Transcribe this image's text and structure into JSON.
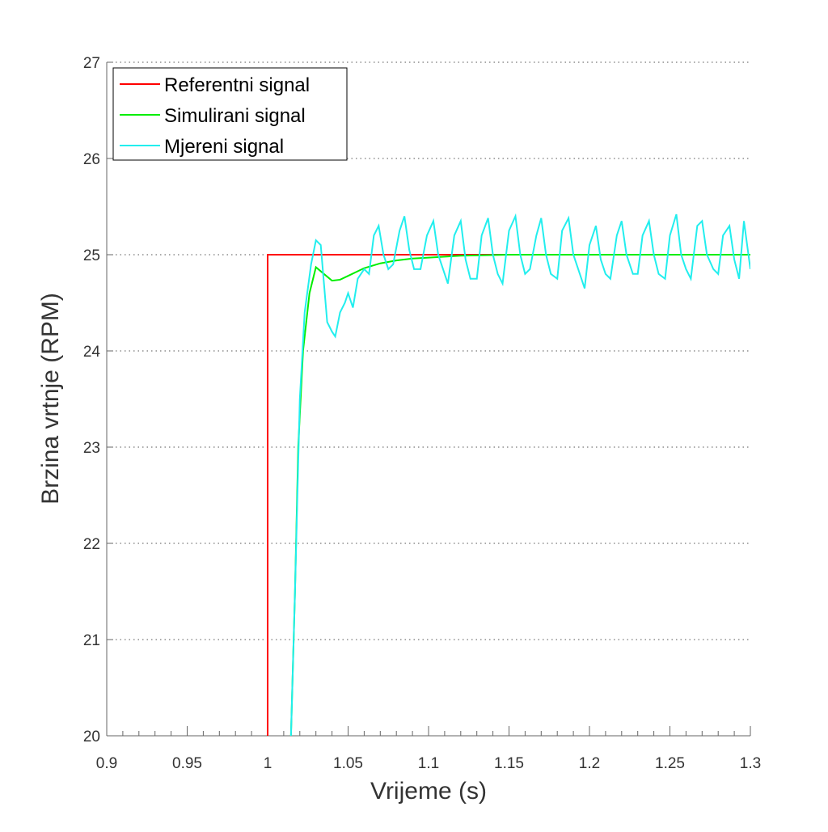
{
  "chart_data": {
    "type": "line",
    "xlabel": "Vrijeme (s)",
    "ylabel": "Brzina vrtnje (RPM)",
    "xlim": [
      0.9,
      1.3
    ],
    "xticks": [
      0.9,
      0.95,
      1,
      1.05,
      1.1,
      1.15,
      1.2,
      1.25,
      1.3
    ],
    "ylim": [
      20,
      27
    ],
    "yticks": [
      20,
      21,
      22,
      23,
      24,
      25,
      26,
      27
    ],
    "grid": true,
    "legend": "upper left",
    "series": [
      {
        "name": "Referentni signal",
        "color": "#ff0000",
        "x": [
          1,
          1,
          1.3
        ],
        "values": [
          20,
          25,
          25
        ]
      },
      {
        "name": "Simulirani signal",
        "color": "#00ee00",
        "x": [
          1.0145,
          1.017,
          1.019,
          1.022,
          1.026,
          1.03,
          1.035,
          1.04,
          1.045,
          1.05,
          1.06,
          1.07,
          1.08,
          1.09,
          1.1,
          1.12,
          1.15,
          1.2,
          1.3
        ],
        "values": [
          20,
          21.5,
          23,
          24,
          24.6,
          24.87,
          24.8,
          24.73,
          24.74,
          24.78,
          24.86,
          24.91,
          24.94,
          24.96,
          24.97,
          24.99,
          25,
          25,
          25
        ]
      },
      {
        "name": "Mjereni signal",
        "color": "#22eeee",
        "x": [
          1.0145,
          1.017,
          1.02,
          1.023,
          1.027,
          1.03,
          1.033,
          1.035,
          1.037,
          1.04,
          1.042,
          1.045,
          1.048,
          1.05,
          1.053,
          1.056,
          1.06,
          1.063,
          1.066,
          1.069,
          1.072,
          1.075,
          1.078,
          1.082,
          1.085,
          1.088,
          1.091,
          1.095,
          1.099,
          1.103,
          1.106,
          1.109,
          1.112,
          1.116,
          1.12,
          1.123,
          1.126,
          1.13,
          1.133,
          1.137,
          1.14,
          1.143,
          1.146,
          1.15,
          1.154,
          1.157,
          1.16,
          1.163,
          1.167,
          1.17,
          1.173,
          1.176,
          1.18,
          1.183,
          1.187,
          1.19,
          1.193,
          1.197,
          1.2,
          1.204,
          1.207,
          1.21,
          1.213,
          1.217,
          1.22,
          1.223,
          1.227,
          1.23,
          1.233,
          1.237,
          1.24,
          1.243,
          1.247,
          1.25,
          1.254,
          1.257,
          1.26,
          1.263,
          1.267,
          1.27,
          1.273,
          1.277,
          1.28,
          1.283,
          1.287,
          1.29,
          1.293,
          1.296,
          1.298,
          1.3
        ],
        "values": [
          20,
          21.5,
          23.5,
          24.4,
          24.9,
          25.15,
          25.1,
          24.7,
          24.3,
          24.2,
          24.15,
          24.4,
          24.5,
          24.6,
          24.45,
          24.75,
          24.85,
          24.8,
          25.2,
          25.3,
          25.0,
          24.85,
          24.9,
          25.25,
          25.4,
          25.05,
          24.85,
          24.85,
          25.2,
          25.35,
          25.0,
          24.85,
          24.7,
          25.2,
          25.35,
          24.95,
          24.75,
          24.75,
          25.2,
          25.38,
          25.0,
          24.8,
          24.7,
          25.25,
          25.4,
          25.0,
          24.8,
          24.85,
          25.2,
          25.38,
          25.0,
          24.8,
          24.75,
          25.25,
          25.38,
          25.0,
          24.85,
          24.65,
          25.1,
          25.3,
          24.95,
          24.8,
          24.75,
          25.2,
          25.35,
          25.0,
          24.8,
          24.8,
          25.2,
          25.35,
          25.0,
          24.8,
          24.75,
          25.2,
          25.42,
          25.0,
          24.85,
          24.75,
          25.3,
          25.35,
          25.0,
          24.85,
          24.8,
          25.2,
          25.3,
          24.95,
          24.75,
          25.35,
          25.1,
          24.85
        ]
      }
    ]
  }
}
